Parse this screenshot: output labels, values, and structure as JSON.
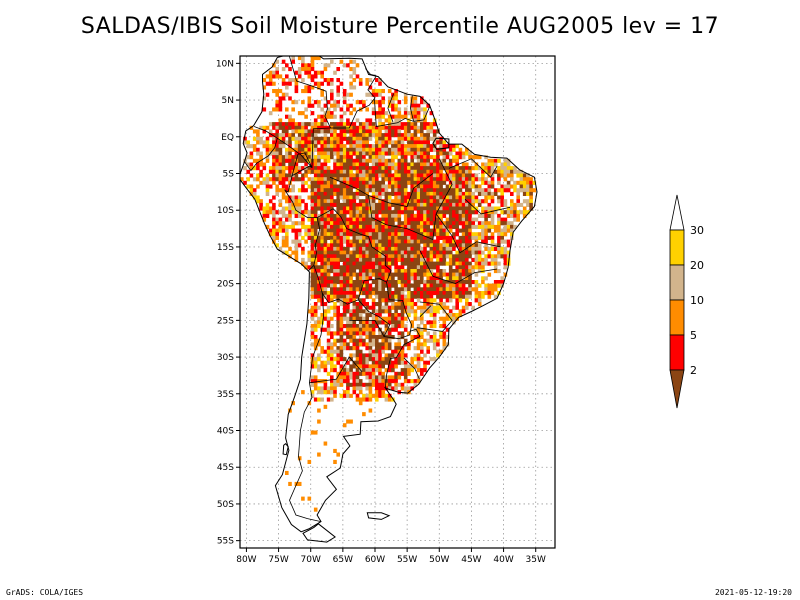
{
  "title": "SALDAS/IBIS Soil Moisture Percentile AUG2005 lev = 17",
  "footer": {
    "left": "GrADS: COLA/IGES",
    "right": "2021-05-12-19:20"
  },
  "map": {
    "lon_range": [
      -81,
      -32
    ],
    "lat_range": [
      -56,
      11
    ],
    "grid": true,
    "lat_ticks": [
      {
        "value": 10,
        "label": "10N"
      },
      {
        "value": 5,
        "label": "5N"
      },
      {
        "value": 0,
        "label": "EQ"
      },
      {
        "value": -5,
        "label": "5S"
      },
      {
        "value": -10,
        "label": "10S"
      },
      {
        "value": -15,
        "label": "15S"
      },
      {
        "value": -20,
        "label": "20S"
      },
      {
        "value": -25,
        "label": "25S"
      },
      {
        "value": -30,
        "label": "30S"
      },
      {
        "value": -35,
        "label": "35S"
      },
      {
        "value": -40,
        "label": "40S"
      },
      {
        "value": -45,
        "label": "45S"
      },
      {
        "value": -50,
        "label": "50S"
      },
      {
        "value": -55,
        "label": "55S"
      }
    ],
    "lon_ticks": [
      {
        "value": -80,
        "label": "80W"
      },
      {
        "value": -75,
        "label": "75W"
      },
      {
        "value": -70,
        "label": "70W"
      },
      {
        "value": -65,
        "label": "65W"
      },
      {
        "value": -60,
        "label": "60W"
      },
      {
        "value": -55,
        "label": "55W"
      },
      {
        "value": -50,
        "label": "50W"
      },
      {
        "value": -45,
        "label": "45W"
      },
      {
        "value": -40,
        "label": "40W"
      },
      {
        "value": -35,
        "label": "35W"
      }
    ],
    "coast_outline": [
      [
        -77.5,
        8.5
      ],
      [
        -76,
        9.5
      ],
      [
        -75.2,
        10.8
      ],
      [
        -73,
        11.3
      ],
      [
        -71.5,
        12.3
      ],
      [
        -71.2,
        11
      ],
      [
        -69.5,
        11.5
      ],
      [
        -68,
        10.6
      ],
      [
        -64,
        10.7
      ],
      [
        -62,
        10.6
      ],
      [
        -61,
        8.5
      ],
      [
        -59.5,
        8.2
      ],
      [
        -58,
        6.8
      ],
      [
        -55,
        5.8
      ],
      [
        -53,
        5.5
      ],
      [
        -51.5,
        4.3
      ],
      [
        -50.5,
        1.9
      ],
      [
        -50,
        0.5
      ],
      [
        -48.5,
        -1
      ],
      [
        -46.5,
        -1
      ],
      [
        -44.5,
        -2.4
      ],
      [
        -42,
        -2.8
      ],
      [
        -39.5,
        -2.9
      ],
      [
        -37.5,
        -4.5
      ],
      [
        -35.2,
        -5.5
      ],
      [
        -34.8,
        -7.5
      ],
      [
        -35.2,
        -9.5
      ],
      [
        -37.2,
        -11.5
      ],
      [
        -38.5,
        -13
      ],
      [
        -39,
        -15.5
      ],
      [
        -39.3,
        -17.8
      ],
      [
        -40,
        -20
      ],
      [
        -41,
        -22
      ],
      [
        -43.2,
        -23
      ],
      [
        -45,
        -23.8
      ],
      [
        -47,
        -24.6
      ],
      [
        -48.5,
        -26.2
      ],
      [
        -48.6,
        -28.3
      ],
      [
        -50,
        -30
      ],
      [
        -51.5,
        -31.5
      ],
      [
        -53.2,
        -33.7
      ],
      [
        -54.9,
        -34.9
      ],
      [
        -56.3,
        -34.8
      ],
      [
        -57.8,
        -34.4
      ],
      [
        -58.4,
        -34.2
      ],
      [
        -57.2,
        -35.7
      ],
      [
        -56.7,
        -36.4
      ],
      [
        -57.6,
        -38.1
      ],
      [
        -59.5,
        -38.7
      ],
      [
        -62.2,
        -38.8
      ],
      [
        -62.3,
        -40.5
      ],
      [
        -64.9,
        -40.8
      ],
      [
        -63.9,
        -42.1
      ],
      [
        -65,
        -43.2
      ],
      [
        -65.4,
        -45.1
      ],
      [
        -67.5,
        -46.3
      ],
      [
        -66,
        -48
      ],
      [
        -67.7,
        -49.5
      ],
      [
        -69,
        -51.5
      ],
      [
        -68.4,
        -52.4
      ],
      [
        -70.3,
        -53.4
      ],
      [
        -71.5,
        -53.8
      ],
      [
        -73,
        -52.8
      ],
      [
        -74.5,
        -50.5
      ],
      [
        -75.5,
        -47.5
      ],
      [
        -74.4,
        -46
      ],
      [
        -73.4,
        -42.7
      ],
      [
        -73.9,
        -41
      ],
      [
        -73.5,
        -37.8
      ],
      [
        -72.5,
        -35.4
      ],
      [
        -71.6,
        -33
      ],
      [
        -71.4,
        -30
      ],
      [
        -70.6,
        -25.5
      ],
      [
        -70.3,
        -22
      ],
      [
        -70.2,
        -18.4
      ],
      [
        -71.5,
        -17.3
      ],
      [
        -75.2,
        -15.3
      ],
      [
        -76.3,
        -13.5
      ],
      [
        -77.2,
        -11.8
      ],
      [
        -78.7,
        -8.5
      ],
      [
        -80,
        -7
      ],
      [
        -81.2,
        -5.6
      ],
      [
        -80.3,
        -3.4
      ],
      [
        -79.9,
        -2.2
      ],
      [
        -80.5,
        -0.9
      ],
      [
        -80.1,
        0.8
      ],
      [
        -78.9,
        1.5
      ],
      [
        -77.6,
        3.4
      ],
      [
        -77.3,
        5.8
      ],
      [
        -77.5,
        7.5
      ],
      [
        -77.5,
        8.5
      ]
    ],
    "islands": [
      [
        [
          -68.8,
          -52.7
        ],
        [
          -66.2,
          -54.5
        ],
        [
          -67.5,
          -55.2
        ],
        [
          -70.5,
          -54.9
        ],
        [
          -71.2,
          -54
        ],
        [
          -69.5,
          -53.2
        ],
        [
          -68.8,
          -52.7
        ]
      ],
      [
        [
          -61.2,
          -51.2
        ],
        [
          -59,
          -51.2
        ],
        [
          -57.8,
          -51.6
        ],
        [
          -59,
          -52.1
        ],
        [
          -61,
          -51.9
        ],
        [
          -61.2,
          -51.2
        ]
      ],
      [
        [
          -50.5,
          -0.2
        ],
        [
          -48.5,
          -0.3
        ],
        [
          -48.5,
          -1.5
        ],
        [
          -50.4,
          -1.7
        ],
        [
          -51,
          -0.9
        ],
        [
          -50.5,
          -0.2
        ]
      ],
      [
        [
          -73.9,
          -41.8
        ],
        [
          -73.5,
          -42.2
        ],
        [
          -73.8,
          -43.3
        ],
        [
          -74.3,
          -43.2
        ],
        [
          -74.2,
          -42
        ],
        [
          -73.9,
          -41.8
        ]
      ]
    ],
    "borders": [
      [
        [
          -73.4,
          11.2
        ],
        [
          -72.2,
          7.6
        ],
        [
          -70.1,
          7
        ],
        [
          -67.6,
          6.2
        ],
        [
          -67.4,
          3.8
        ],
        [
          -67.8,
          2.8
        ],
        [
          -66.9,
          1.2
        ],
        [
          -64,
          1.2
        ],
        [
          -62.8,
          3.5
        ],
        [
          -60.9,
          4.3
        ],
        [
          -60,
          5.3
        ],
        [
          -61.1,
          6.4
        ],
        [
          -59.8,
          8.3
        ]
      ],
      [
        [
          -60.1,
          5.2
        ],
        [
          -59.8,
          1.4
        ],
        [
          -56.5,
          1.9
        ],
        [
          -55.3,
          2.5
        ],
        [
          -54,
          2.1
        ],
        [
          -52.4,
          2.3
        ],
        [
          -51.5,
          4.1
        ]
      ],
      [
        [
          -57.1,
          5.9
        ],
        [
          -58,
          3.9
        ],
        [
          -57.2,
          2
        ]
      ],
      [
        [
          -54.2,
          5.6
        ],
        [
          -54.5,
          3.9
        ],
        [
          -54,
          2.1
        ]
      ],
      [
        [
          -66.9,
          1.2
        ],
        [
          -69.6,
          1.1
        ],
        [
          -69.8,
          -4.2
        ],
        [
          -70.2,
          -4
        ],
        [
          -72.9,
          -5.3
        ],
        [
          -73.5,
          -7.5
        ],
        [
          -74,
          -7.3
        ],
        [
          -72.8,
          -8.9
        ],
        [
          -72.3,
          -10
        ],
        [
          -70.5,
          -11
        ],
        [
          -69,
          -11
        ]
      ],
      [
        [
          -69.8,
          -4.2
        ],
        [
          -71.5,
          -2.5
        ],
        [
          -73.5,
          -1.2
        ],
        [
          -75.2,
          -0.2
        ],
        [
          -77,
          0.8
        ],
        [
          -78.8,
          1.4
        ]
      ],
      [
        [
          -75.2,
          -0.2
        ],
        [
          -75.6,
          -1.5
        ],
        [
          -76.6,
          -2.6
        ],
        [
          -78.4,
          -3.6
        ],
        [
          -79.3,
          -4.6
        ],
        [
          -80.3,
          -3.4
        ]
      ],
      [
        [
          -69,
          -11
        ],
        [
          -68.6,
          -12.6
        ],
        [
          -69.3,
          -14.8
        ],
        [
          -69.1,
          -15.8
        ],
        [
          -69.5,
          -17.5
        ],
        [
          -70.4,
          -18.3
        ]
      ],
      [
        [
          -69,
          -11
        ],
        [
          -66.5,
          -9.8
        ],
        [
          -65.3,
          -10.9
        ],
        [
          -64.4,
          -12.5
        ],
        [
          -62.2,
          -13.3
        ],
        [
          -61,
          -13.6
        ],
        [
          -60.5,
          -15
        ],
        [
          -58.3,
          -16.3
        ],
        [
          -58.4,
          -17.5
        ],
        [
          -57.5,
          -18.2
        ],
        [
          -58.2,
          -19.8
        ],
        [
          -59.3,
          -19.3
        ],
        [
          -61.7,
          -19.6
        ],
        [
          -62.6,
          -22.2
        ],
        [
          -64.3,
          -22.8
        ],
        [
          -65.7,
          -22.1
        ],
        [
          -67.2,
          -22.6
        ],
        [
          -68.2,
          -21.3
        ],
        [
          -68.8,
          -19.3
        ],
        [
          -69.5,
          -17.5
        ]
      ],
      [
        [
          -58.2,
          -19.8
        ],
        [
          -57.8,
          -22.2
        ],
        [
          -55.7,
          -22.3
        ],
        [
          -55.1,
          -24.1
        ],
        [
          -54.3,
          -25.6
        ],
        [
          -54.6,
          -27
        ],
        [
          -56.3,
          -27.5
        ],
        [
          -58.6,
          -27.2
        ],
        [
          -57.7,
          -25.6
        ],
        [
          -59.4,
          -24.5
        ],
        [
          -61,
          -23.8
        ],
        [
          -62.6,
          -22.2
        ]
      ],
      [
        [
          -68.2,
          -21.3
        ],
        [
          -68,
          -24.3
        ],
        [
          -68.4,
          -27
        ],
        [
          -69.7,
          -30
        ],
        [
          -70.2,
          -33.5
        ],
        [
          -69.8,
          -35.5
        ],
        [
          -71,
          -37.5
        ],
        [
          -71.6,
          -40
        ],
        [
          -71.9,
          -43.5
        ],
        [
          -71.3,
          -45.5
        ],
        [
          -72.3,
          -47.5
        ],
        [
          -73.3,
          -49.5
        ],
        [
          -72.3,
          -51.5
        ],
        [
          -70.5,
          -52
        ],
        [
          -68.4,
          -52.4
        ]
      ],
      [
        [
          -54.6,
          -26.5
        ],
        [
          -53.6,
          -26.2
        ],
        [
          -53,
          -27.2
        ],
        [
          -55.5,
          -28.3
        ],
        [
          -56.7,
          -30.1
        ],
        [
          -57.6,
          -30.2
        ],
        [
          -58.2,
          -32.4
        ],
        [
          -58.4,
          -34.2
        ]
      ],
      [
        [
          -55.5,
          -30.1
        ],
        [
          -53.8,
          -31.6
        ],
        [
          -53.1,
          -33
        ]
      ],
      [
        [
          -69.8,
          -4.2
        ],
        [
          -70.9,
          -2.2
        ],
        [
          -72,
          -2.4
        ],
        [
          -72.9,
          -5.3
        ]
      ],
      [
        [
          -59.8,
          8.3
        ],
        [
          -60.7,
          8.5
        ],
        [
          -61.5,
          9.3
        ]
      ],
      [
        [
          -48.5,
          -4.3
        ],
        [
          -45,
          -3
        ],
        [
          -42,
          -5.5
        ],
        [
          -41,
          -4
        ]
      ],
      [
        [
          -46,
          -8.5
        ],
        [
          -43.5,
          -10.5
        ],
        [
          -41,
          -10
        ],
        [
          -39,
          -9.6
        ]
      ],
      [
        [
          -50.5,
          -10.5
        ],
        [
          -48,
          -13.5
        ],
        [
          -46.8,
          -15.8
        ],
        [
          -44.2,
          -14.3
        ],
        [
          -40.5,
          -15
        ]
      ],
      [
        [
          -53,
          -15.5
        ],
        [
          -51,
          -19
        ],
        [
          -47.5,
          -20
        ],
        [
          -44.5,
          -18.5
        ],
        [
          -41,
          -18
        ]
      ],
      [
        [
          -58.2,
          -12
        ],
        [
          -55,
          -12.5
        ],
        [
          -51,
          -14
        ],
        [
          -50.5,
          -10.5
        ],
        [
          -48,
          -6.5
        ],
        [
          -50,
          -3
        ]
      ],
      [
        [
          -61,
          -8
        ],
        [
          -57.8,
          -9
        ],
        [
          -55,
          -9.5
        ],
        [
          -54,
          -7
        ],
        [
          -51,
          -5
        ]
      ],
      [
        [
          -67,
          -5.5
        ],
        [
          -63,
          -7
        ],
        [
          -61,
          -8
        ],
        [
          -60.5,
          -11
        ],
        [
          -58.2,
          -12
        ]
      ],
      [
        [
          -53,
          -22.5
        ],
        [
          -50,
          -22.8
        ],
        [
          -48,
          -25
        ],
        [
          -49.5,
          -26.5
        ],
        [
          -53.5,
          -26
        ]
      ],
      [
        [
          -51.3,
          -23
        ],
        [
          -53,
          -24.5
        ]
      ],
      [
        [
          -64,
          -25
        ],
        [
          -60,
          -25
        ],
        [
          -58.6,
          -27.2
        ]
      ],
      [
        [
          -70.2,
          -33.5
        ],
        [
          -66,
          -33
        ],
        [
          -64,
          -30
        ],
        [
          -62,
          -32
        ]
      ]
    ]
  },
  "legend": {
    "ticks": [
      "30",
      "20",
      "10",
      "5",
      "2"
    ],
    "colors": [
      "#ffffff",
      "#ffd100",
      "#d2b48c",
      "#ff8c00",
      "#ff0000",
      "#8b4513"
    ]
  }
}
